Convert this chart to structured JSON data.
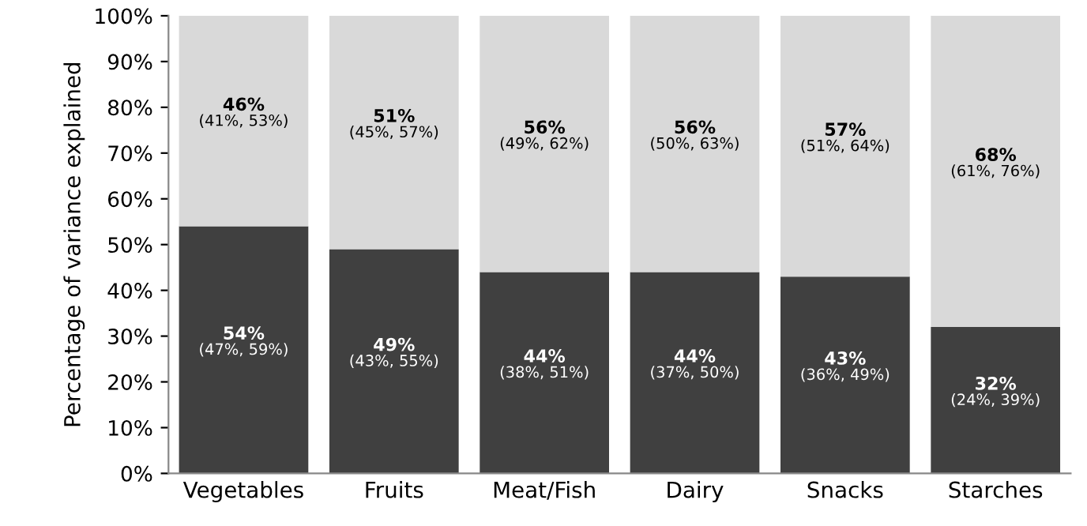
{
  "chart_data": {
    "type": "bar",
    "stacked": true,
    "ylabel": "Percentage of variance explained",
    "categories": [
      "Vegetables",
      "Fruits",
      "Meat/Fish",
      "Dairy",
      "Snacks",
      "Starches"
    ],
    "series": [
      {
        "color": "#404040",
        "values": [
          54,
          49,
          44,
          44,
          43,
          32
        ],
        "value_labels": [
          "54%\n(47%, 59%)",
          "49%\n(43%, 55%)",
          "44%\n(38%, 51%)",
          "44%\n(37%, 50%)",
          "43%\n(36%, 49%)",
          "32%\n(24%, 39%)"
        ]
      },
      {
        "color": "#d9d9d9",
        "values": [
          46,
          51,
          56,
          56,
          57,
          68
        ],
        "value_labels": [
          "46%\n(41%, 53%)",
          "51%\n(45%, 57%)",
          "56%\n(49%, 62%)",
          "56%\n(50%, 63%)",
          "57%\n(51%, 64%)",
          "68%\n(61%, 76%)"
        ]
      }
    ],
    "ylim": [
      0,
      100
    ],
    "yticks": [
      {
        "value": 0,
        "label": "0%"
      },
      {
        "value": 10,
        "label": "10%"
      },
      {
        "value": 20,
        "label": "20%"
      },
      {
        "value": 30,
        "label": "30%"
      },
      {
        "value": 40,
        "label": "40%"
      },
      {
        "value": 50,
        "label": "50%"
      },
      {
        "value": 60,
        "label": "60%"
      },
      {
        "value": 70,
        "label": "70%"
      },
      {
        "value": 80,
        "label": "80%"
      },
      {
        "value": 90,
        "label": "90%"
      },
      {
        "value": 100,
        "label": "100%"
      }
    ],
    "grid": false,
    "legend": false
  }
}
